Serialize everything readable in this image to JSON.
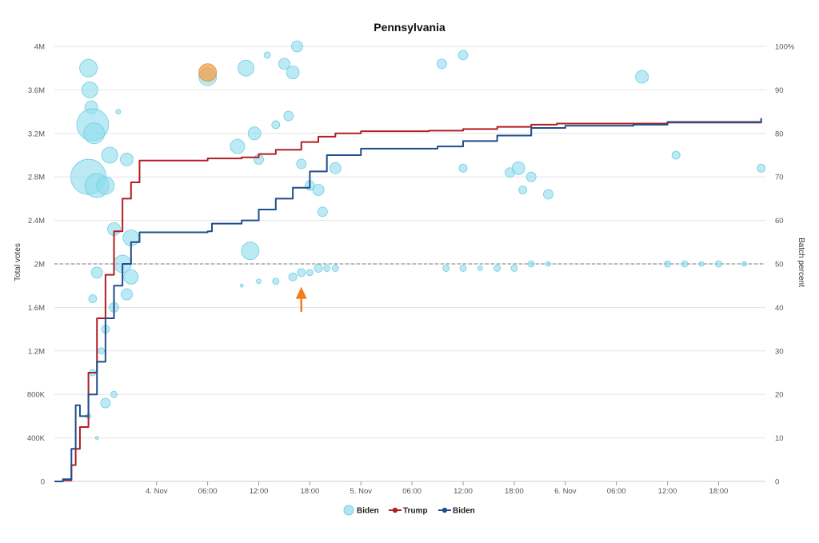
{
  "chart_data": {
    "type": "line",
    "title": "Pennsylvania",
    "ylabel": "Total votes",
    "y2label": "Batch percent",
    "ylim": [
      0,
      4000000
    ],
    "y2lim": [
      0,
      100
    ],
    "xlim": [
      "2020-11-03T12:00",
      "2020-11-06T23:30"
    ],
    "yticks": [
      "0",
      "400K",
      "800K",
      "1.2M",
      "1.6M",
      "2M",
      "2.4M",
      "2.8M",
      "3.2M",
      "3.6M",
      "4M"
    ],
    "y2ticks": [
      "0",
      "10",
      "20",
      "30",
      "40",
      "50",
      "60",
      "70",
      "80",
      "90",
      "100%"
    ],
    "xticks": [
      {
        "t": "2020-11-04T00:00",
        "label": "4. Nov"
      },
      {
        "t": "2020-11-04T06:00",
        "label": "06:00"
      },
      {
        "t": "2020-11-04T12:00",
        "label": "12:00"
      },
      {
        "t": "2020-11-04T18:00",
        "label": "18:00"
      },
      {
        "t": "2020-11-05T00:00",
        "label": "5. Nov"
      },
      {
        "t": "2020-11-05T06:00",
        "label": "06:00"
      },
      {
        "t": "2020-11-05T12:00",
        "label": "12:00"
      },
      {
        "t": "2020-11-05T18:00",
        "label": "18:00"
      },
      {
        "t": "2020-11-06T00:00",
        "label": "6. Nov"
      },
      {
        "t": "2020-11-06T06:00",
        "label": "06:00"
      },
      {
        "t": "2020-11-06T12:00",
        "label": "12:00"
      },
      {
        "t": "2020-11-06T18:00",
        "label": "18:00"
      }
    ],
    "reference_line": {
      "y2": 50,
      "style": "dashed"
    },
    "grid": true,
    "legend": {
      "placement": "bottom-center"
    },
    "series": [
      {
        "name": "Trump",
        "type": "line",
        "color": "#b01e23",
        "points": [
          [
            "2020-11-03T12:00",
            0
          ],
          [
            "2020-11-03T13:00",
            10000
          ],
          [
            "2020-11-03T14:00",
            150000
          ],
          [
            "2020-11-03T14:30",
            300000
          ],
          [
            "2020-11-03T15:00",
            500000
          ],
          [
            "2020-11-03T16:00",
            1000000
          ],
          [
            "2020-11-03T17:00",
            1500000
          ],
          [
            "2020-11-03T18:00",
            1900000
          ],
          [
            "2020-11-03T19:00",
            2300000
          ],
          [
            "2020-11-03T20:00",
            2600000
          ],
          [
            "2020-11-03T21:00",
            2750000
          ],
          [
            "2020-11-03T22:00",
            2950000
          ],
          [
            "2020-11-04T06:00",
            2970000
          ],
          [
            "2020-11-04T10:00",
            2980000
          ],
          [
            "2020-11-04T12:00",
            3010000
          ],
          [
            "2020-11-04T14:00",
            3050000
          ],
          [
            "2020-11-04T17:00",
            3120000
          ],
          [
            "2020-11-04T19:00",
            3170000
          ],
          [
            "2020-11-04T21:00",
            3200000
          ],
          [
            "2020-11-05T00:00",
            3220000
          ],
          [
            "2020-11-05T08:00",
            3225000
          ],
          [
            "2020-11-05T12:00",
            3240000
          ],
          [
            "2020-11-05T16:00",
            3260000
          ],
          [
            "2020-11-05T20:00",
            3280000
          ],
          [
            "2020-11-05T23:00",
            3290000
          ],
          [
            "2020-11-06T12:00",
            3300000
          ],
          [
            "2020-11-06T23:00",
            3310000
          ]
        ]
      },
      {
        "name": "Biden",
        "type": "line",
        "color": "#1f4e8c",
        "points": [
          [
            "2020-11-03T12:00",
            0
          ],
          [
            "2020-11-03T13:00",
            20000
          ],
          [
            "2020-11-03T14:00",
            300000
          ],
          [
            "2020-11-03T14:30",
            700000
          ],
          [
            "2020-11-03T15:00",
            600000
          ],
          [
            "2020-11-03T16:00",
            800000
          ],
          [
            "2020-11-03T17:00",
            1100000
          ],
          [
            "2020-11-03T18:00",
            1500000
          ],
          [
            "2020-11-03T19:00",
            1800000
          ],
          [
            "2020-11-03T20:00",
            2000000
          ],
          [
            "2020-11-03T21:00",
            2200000
          ],
          [
            "2020-11-03T22:00",
            2290000
          ],
          [
            "2020-11-04T06:00",
            2300000
          ],
          [
            "2020-11-04T06:30",
            2370000
          ],
          [
            "2020-11-04T10:00",
            2400000
          ],
          [
            "2020-11-04T12:00",
            2500000
          ],
          [
            "2020-11-04T14:00",
            2600000
          ],
          [
            "2020-11-04T16:00",
            2700000
          ],
          [
            "2020-11-04T18:00",
            2850000
          ],
          [
            "2020-11-04T20:00",
            3000000
          ],
          [
            "2020-11-05T00:00",
            3060000
          ],
          [
            "2020-11-05T09:00",
            3080000
          ],
          [
            "2020-11-05T12:00",
            3130000
          ],
          [
            "2020-11-05T16:00",
            3180000
          ],
          [
            "2020-11-05T20:00",
            3250000
          ],
          [
            "2020-11-06T00:00",
            3270000
          ],
          [
            "2020-11-06T08:00",
            3280000
          ],
          [
            "2020-11-06T12:00",
            3305000
          ],
          [
            "2020-11-06T23:00",
            3340000
          ]
        ]
      },
      {
        "name": "Biden",
        "type": "bubble",
        "axis": "y2",
        "color": "#8fdcec",
        "points": [
          [
            "2020-11-03T16:00",
            95,
            11
          ],
          [
            "2020-11-03T16:10",
            90,
            10
          ],
          [
            "2020-11-03T16:20",
            86,
            8
          ],
          [
            "2020-11-03T16:30",
            82,
            20
          ],
          [
            "2020-11-03T16:40",
            80,
            13
          ],
          [
            "2020-11-03T16:00",
            70,
            22
          ],
          [
            "2020-11-03T17:00",
            68,
            15
          ],
          [
            "2020-11-03T18:00",
            68,
            11
          ],
          [
            "2020-11-03T18:30",
            75,
            10
          ],
          [
            "2020-11-03T20:30",
            74,
            8
          ],
          [
            "2020-11-03T19:00",
            58,
            8
          ],
          [
            "2020-11-03T21:00",
            56,
            10
          ],
          [
            "2020-11-03T20:00",
            50,
            11
          ],
          [
            "2020-11-03T21:00",
            47,
            9
          ],
          [
            "2020-11-03T20:30",
            43,
            7
          ],
          [
            "2020-11-03T19:00",
            40,
            6
          ],
          [
            "2020-11-03T17:00",
            48,
            7
          ],
          [
            "2020-11-03T16:30",
            42,
            5
          ],
          [
            "2020-11-03T18:00",
            35,
            5
          ],
          [
            "2020-11-03T17:30",
            30,
            4
          ],
          [
            "2020-11-03T16:30",
            25,
            4
          ],
          [
            "2020-11-03T18:00",
            18,
            6
          ],
          [
            "2020-11-03T19:00",
            20,
            4
          ],
          [
            "2020-11-03T16:00",
            15,
            3
          ],
          [
            "2020-11-03T17:00",
            10,
            2
          ],
          [
            "2020-11-03T19:30",
            85,
            3
          ],
          [
            "2020-11-04T06:00",
            93,
            11
          ],
          [
            "2020-11-04T09:30",
            77,
            9
          ],
          [
            "2020-11-04T10:30",
            95,
            10
          ],
          [
            "2020-11-04T11:00",
            53,
            11
          ],
          [
            "2020-11-04T11:30",
            80,
            8
          ],
          [
            "2020-11-04T12:00",
            74,
            6
          ],
          [
            "2020-11-04T13:00",
            98,
            4
          ],
          [
            "2020-11-04T14:00",
            82,
            5
          ],
          [
            "2020-11-04T15:00",
            96,
            7
          ],
          [
            "2020-11-04T16:00",
            94,
            8
          ],
          [
            "2020-11-04T16:30",
            100,
            7
          ],
          [
            "2020-11-04T15:30",
            84,
            6
          ],
          [
            "2020-11-04T17:00",
            73,
            6
          ],
          [
            "2020-11-04T18:00",
            68,
            6
          ],
          [
            "2020-11-04T19:00",
            67,
            7
          ],
          [
            "2020-11-04T19:30",
            62,
            6
          ],
          [
            "2020-11-04T21:00",
            72,
            7
          ],
          [
            "2020-11-05T09:30",
            96,
            6
          ],
          [
            "2020-11-05T12:00",
            98,
            6
          ],
          [
            "2020-11-05T12:00",
            72,
            5
          ],
          [
            "2020-11-05T17:30",
            71,
            6
          ],
          [
            "2020-11-05T18:30",
            72,
            8
          ],
          [
            "2020-11-05T19:00",
            67,
            5
          ],
          [
            "2020-11-05T20:00",
            70,
            6
          ],
          [
            "2020-11-05T22:00",
            66,
            6
          ],
          [
            "2020-11-06T09:00",
            93,
            8
          ],
          [
            "2020-11-06T13:00",
            75,
            5
          ],
          [
            "2020-11-06T23:00",
            72,
            5
          ],
          [
            "2020-11-04T10:00",
            45,
            2
          ],
          [
            "2020-11-04T12:00",
            46,
            3
          ],
          [
            "2020-11-04T14:00",
            46,
            4
          ],
          [
            "2020-11-04T16:00",
            47,
            5
          ],
          [
            "2020-11-04T17:00",
            48,
            5
          ],
          [
            "2020-11-04T18:00",
            48,
            4
          ],
          [
            "2020-11-04T19:00",
            49,
            5
          ],
          [
            "2020-11-04T20:00",
            49,
            4
          ],
          [
            "2020-11-04T21:00",
            49,
            4
          ],
          [
            "2020-11-05T10:00",
            49,
            4
          ],
          [
            "2020-11-05T12:00",
            49,
            4
          ],
          [
            "2020-11-05T14:00",
            49,
            3
          ],
          [
            "2020-11-05T16:00",
            49,
            4
          ],
          [
            "2020-11-05T18:00",
            49,
            4
          ],
          [
            "2020-11-05T20:00",
            50,
            4
          ],
          [
            "2020-11-05T22:00",
            50,
            3
          ],
          [
            "2020-11-06T12:00",
            50,
            4
          ],
          [
            "2020-11-06T14:00",
            50,
            4
          ],
          [
            "2020-11-06T16:00",
            50,
            3
          ],
          [
            "2020-11-06T18:00",
            50,
            4
          ],
          [
            "2020-11-06T21:00",
            50,
            3
          ]
        ]
      },
      {
        "name": "",
        "type": "bubble",
        "axis": "y2",
        "color": "#f5a04a",
        "points": [
          [
            "2020-11-04T06:00",
            94,
            11
          ]
        ]
      }
    ],
    "annotations": [
      {
        "type": "arrow",
        "color": "#f07d1a",
        "x": "2020-11-04T17:00",
        "y2_from": 39,
        "y2_to": 44
      }
    ]
  },
  "legend_items": [
    {
      "label": "Biden",
      "kind": "bubble",
      "color": "#8fdcec"
    },
    {
      "label": "Trump",
      "kind": "line",
      "color": "#b01e23"
    },
    {
      "label": "Biden",
      "kind": "line",
      "color": "#1f4e8c"
    }
  ]
}
